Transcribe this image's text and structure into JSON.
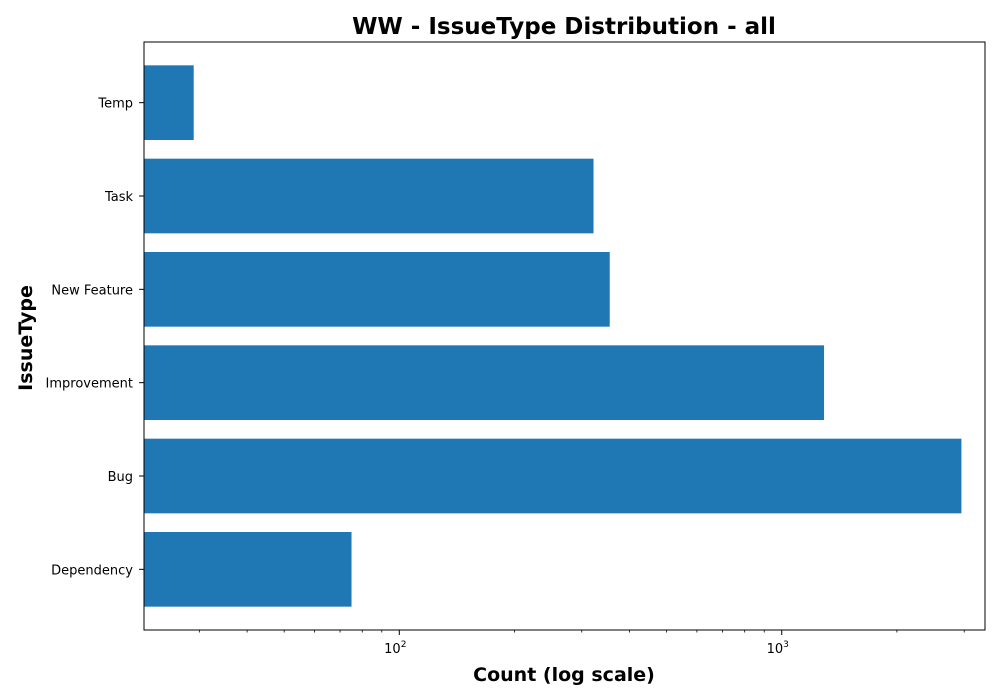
{
  "chart_data": {
    "type": "bar",
    "orientation": "horizontal",
    "title": "WW - IssueType Distribution - all",
    "xlabel": "Count (log scale)",
    "ylabel": "IssueType",
    "x_scale": "log",
    "xlim": [
      21.5,
      3400
    ],
    "x_ticks": [
      {
        "value": 100,
        "base": "10",
        "exp": "2"
      },
      {
        "value": 1000,
        "base": "10",
        "exp": "3"
      }
    ],
    "categories": [
      "Dependency",
      "Bug",
      "Improvement",
      "New Feature",
      "Task",
      "Temp"
    ],
    "values": [
      75,
      2950,
      1290,
      355,
      322,
      29
    ],
    "bar_color": "#1f77b4",
    "grid": false,
    "legend": "none"
  }
}
